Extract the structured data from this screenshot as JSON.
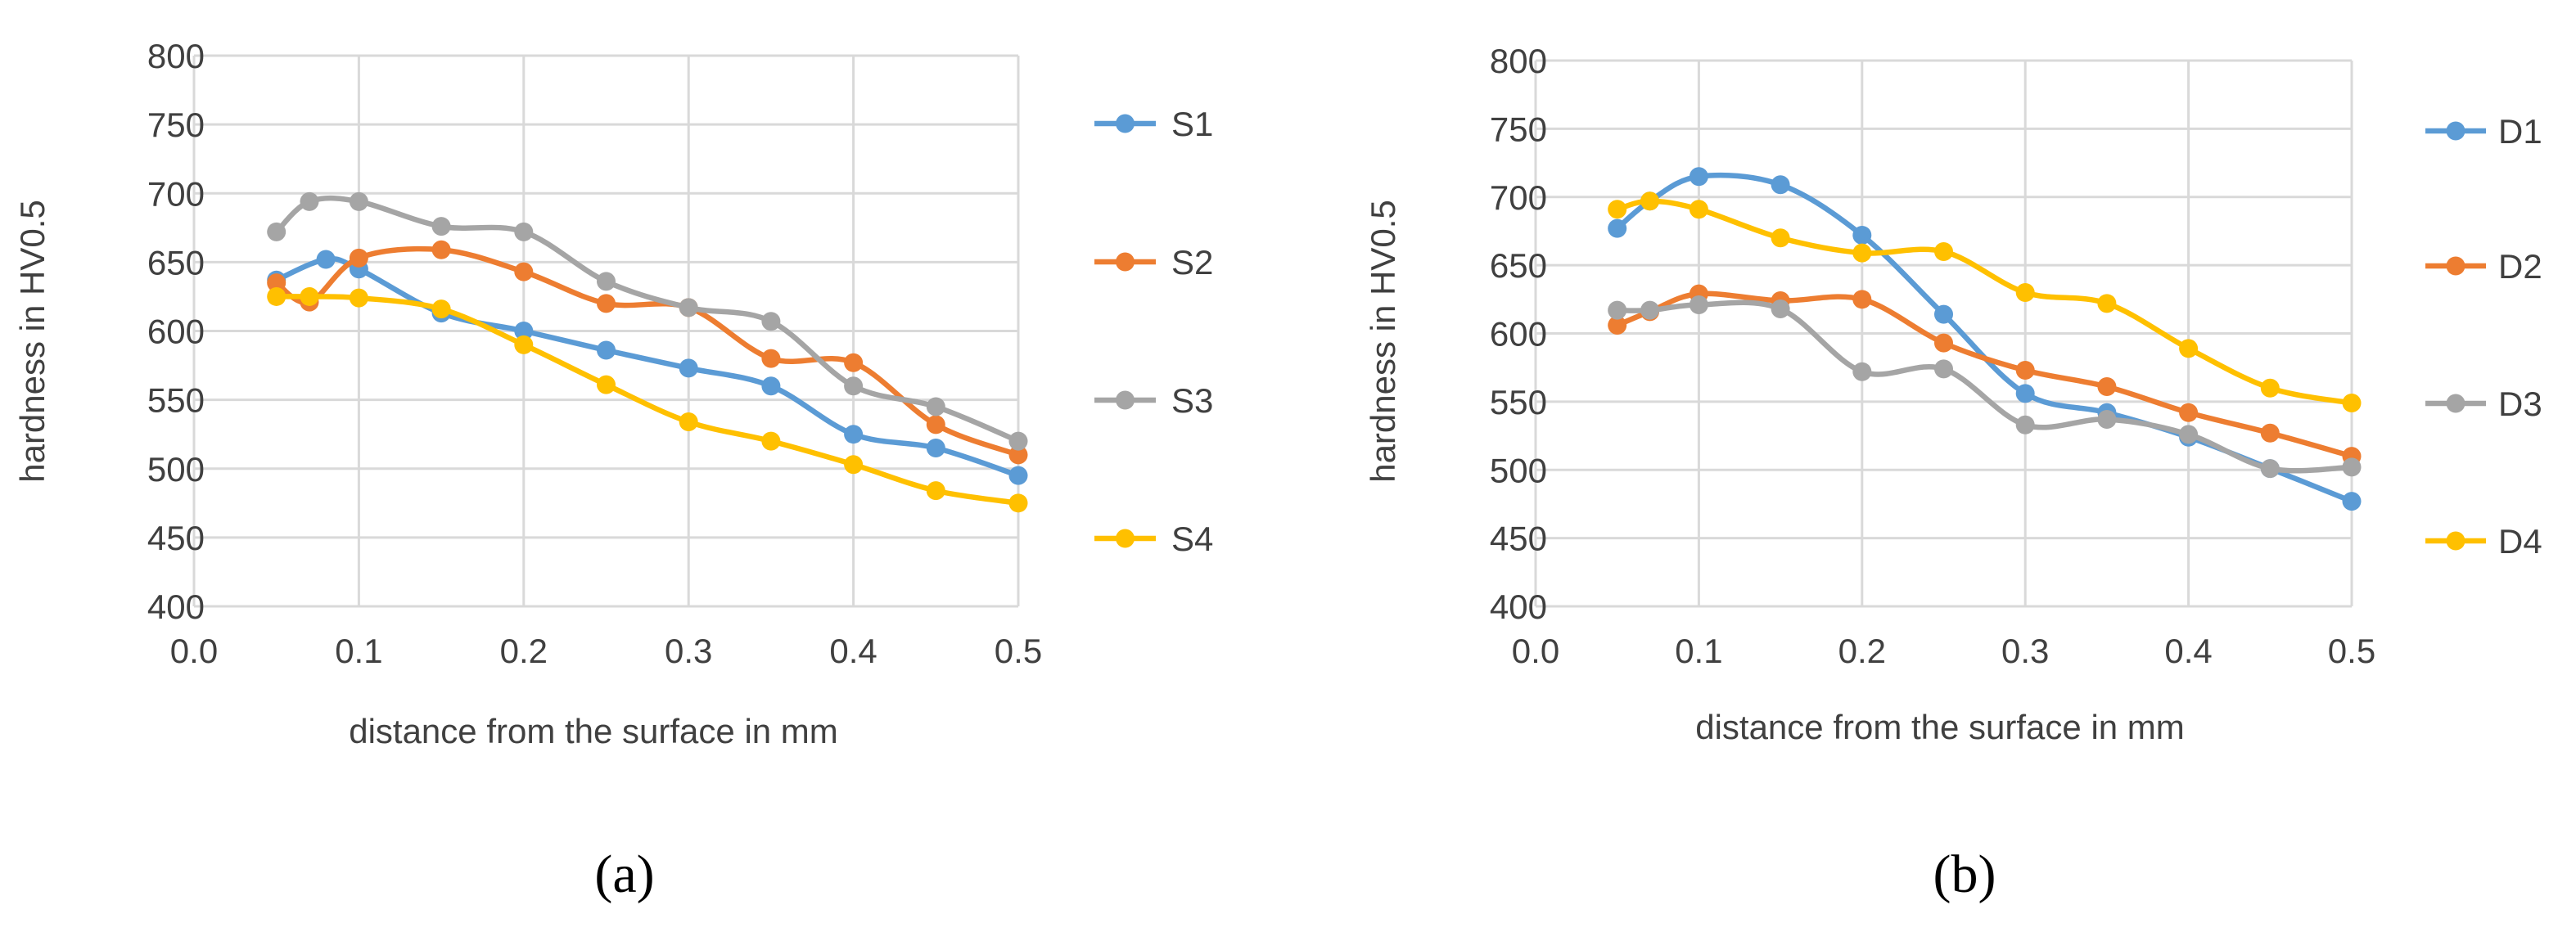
{
  "chart_data": [
    {
      "type": "line",
      "panel_label": "(a)",
      "xlabel": "distance from the surface in mm",
      "ylabel": "hardness in HV0.5",
      "xlim": [
        0.0,
        0.5
      ],
      "ylim": [
        400,
        800
      ],
      "xticks": [
        "0.0",
        "0.1",
        "0.2",
        "0.3",
        "0.4",
        "0.5"
      ],
      "yticks": [
        "400",
        "450",
        "500",
        "550",
        "600",
        "650",
        "700",
        "750",
        "800"
      ],
      "grid": true,
      "legend_position": "right",
      "series": [
        {
          "name": "S1",
          "color": "#5B9BD5",
          "x": [
            0.05,
            0.08,
            0.1,
            0.15,
            0.2,
            0.25,
            0.3,
            0.35,
            0.4,
            0.45,
            0.5
          ],
          "y": [
            637,
            652,
            645,
            613,
            600,
            586,
            573,
            560,
            525,
            515,
            495
          ]
        },
        {
          "name": "S2",
          "color": "#ED7D31",
          "x": [
            0.05,
            0.07,
            0.1,
            0.15,
            0.2,
            0.25,
            0.3,
            0.35,
            0.4,
            0.45,
            0.5
          ],
          "y": [
            635,
            621,
            653,
            659,
            643,
            620,
            617,
            580,
            577,
            532,
            510
          ]
        },
        {
          "name": "S3",
          "color": "#A5A5A5",
          "x": [
            0.05,
            0.07,
            0.1,
            0.15,
            0.2,
            0.25,
            0.3,
            0.35,
            0.4,
            0.45,
            0.5
          ],
          "y": [
            672,
            694,
            694,
            676,
            672,
            636,
            617,
            607,
            560,
            545,
            520
          ]
        },
        {
          "name": "S4",
          "color": "#FFC000",
          "x": [
            0.05,
            0.07,
            0.1,
            0.15,
            0.2,
            0.25,
            0.3,
            0.35,
            0.4,
            0.45,
            0.5
          ],
          "y": [
            625,
            625,
            624,
            616,
            590,
            561,
            534,
            520,
            503,
            484,
            475
          ]
        }
      ]
    },
    {
      "type": "line",
      "panel_label": "(b)",
      "xlabel": "distance from the surface in mm",
      "ylabel": "hardness in HV0.5",
      "xlim": [
        0.0,
        0.5
      ],
      "ylim": [
        400,
        800
      ],
      "xticks": [
        "0.0",
        "0.1",
        "0.2",
        "0.3",
        "0.4",
        "0.5"
      ],
      "yticks": [
        "400",
        "450",
        "500",
        "550",
        "600",
        "650",
        "700",
        "750",
        "800"
      ],
      "grid": true,
      "legend_position": "right",
      "series": [
        {
          "name": "D1",
          "color": "#5B9BD5",
          "x": [
            0.05,
            0.07,
            0.1,
            0.15,
            0.2,
            0.25,
            0.3,
            0.35,
            0.4,
            0.45,
            0.5
          ],
          "y": [
            677,
            697,
            715,
            709,
            672,
            614,
            556,
            542,
            524,
            501,
            477
          ]
        },
        {
          "name": "D2",
          "color": "#ED7D31",
          "x": [
            0.05,
            0.07,
            0.1,
            0.15,
            0.2,
            0.25,
            0.3,
            0.35,
            0.4,
            0.45,
            0.5
          ],
          "y": [
            606,
            616,
            629,
            624,
            625,
            593,
            573,
            561,
            542,
            527,
            510
          ]
        },
        {
          "name": "D3",
          "color": "#A5A5A5",
          "x": [
            0.05,
            0.07,
            0.1,
            0.15,
            0.2,
            0.25,
            0.3,
            0.35,
            0.4,
            0.45,
            0.5
          ],
          "y": [
            617,
            617,
            621,
            618,
            572,
            574,
            533,
            537,
            526,
            501,
            502
          ]
        },
        {
          "name": "D4",
          "color": "#FFC000",
          "x": [
            0.05,
            0.07,
            0.1,
            0.15,
            0.2,
            0.25,
            0.3,
            0.35,
            0.4,
            0.45,
            0.5
          ],
          "y": [
            691,
            697,
            691,
            670,
            659,
            660,
            630,
            622,
            589,
            560,
            549
          ]
        }
      ]
    }
  ]
}
